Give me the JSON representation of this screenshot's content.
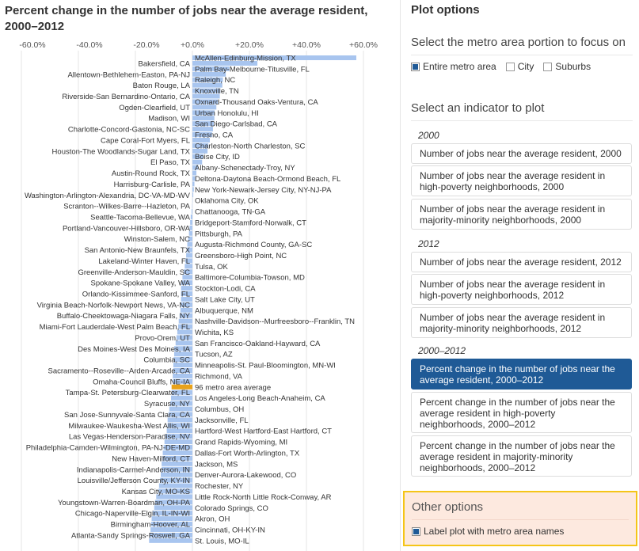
{
  "chart_data": {
    "type": "bar",
    "orientation": "horizontal",
    "title": "Percent change in the number of jobs near the average resident, 2000–2012",
    "xlim": [
      -60,
      60
    ],
    "xticks": [
      -60,
      -40,
      -20,
      0,
      20,
      40,
      60
    ],
    "xtick_labels": [
      "-60.0%",
      "-40.0%",
      "-20.0%",
      "+0.0%",
      "+20.0%",
      "+40.0%",
      "+60.0%"
    ],
    "grid": true,
    "bar_color": "#a8c5ef",
    "highlight_color": "#e8a21a",
    "highlight_category": "96 metro area average",
    "categories": [
      "McAllen-Edinburg-Mission, TX",
      "Bakersfield, CA",
      "Palm Bay-Melbourne-Titusville, FL",
      "Allentown-Bethlehem-Easton, PA-NJ",
      "Raleigh, NC",
      "Baton Rouge, LA",
      "Knoxville, TN",
      "Riverside-San Bernardino-Ontario, CA",
      "Oxnard-Thousand Oaks-Ventura, CA",
      "Ogden-Clearfield, UT",
      "Urban Honolulu, HI",
      "Madison, WI",
      "San Diego-Carlsbad, CA",
      "Charlotte-Concord-Gastonia, NC-SC",
      "Fresno, CA",
      "Cape Coral-Fort Myers, FL",
      "Charleston-North Charleston, SC",
      "Houston-The Woodlands-Sugar Land, TX",
      "Boise City, ID",
      "El Paso, TX",
      "Albany-Schenectady-Troy, NY",
      "Austin-Round Rock, TX",
      "Deltona-Daytona Beach-Ormond Beach, FL",
      "Harrisburg-Carlisle, PA",
      "New York-Newark-Jersey City, NY-NJ-PA",
      "Washington-Arlington-Alexandria, DC-VA-MD-WV",
      "Oklahoma City, OK",
      "Scranton--Wilkes-Barre--Hazleton, PA",
      "Chattanooga, TN-GA",
      "Seattle-Tacoma-Bellevue, WA",
      "Bridgeport-Stamford-Norwalk, CT",
      "Portland-Vancouver-Hillsboro, OR-WA",
      "Pittsburgh, PA",
      "Winston-Salem, NC",
      "Augusta-Richmond County, GA-SC",
      "San Antonio-New Braunfels, TX",
      "Greensboro-High Point, NC",
      "Lakeland-Winter Haven, FL",
      "Tulsa, OK",
      "Greenville-Anderson-Mauldin, SC",
      "Baltimore-Columbia-Towson, MD",
      "Spokane-Spokane Valley, WA",
      "Stockton-Lodi, CA",
      "Orlando-Kissimmee-Sanford, FL",
      "Salt Lake City, UT",
      "Virginia Beach-Norfolk-Newport News, VA-NC",
      "Albuquerque, NM",
      "Buffalo-Cheektowaga-Niagara Falls, NY",
      "Nashville-Davidson--Murfreesboro--Franklin, TN",
      "Miami-Fort Lauderdale-West Palm Beach, FL",
      "Wichita, KS",
      "Provo-Orem, UT",
      "San Francisco-Oakland-Hayward, CA",
      "Des Moines-West Des Moines, IA",
      "Tucson, AZ",
      "Columbia, SC",
      "Minneapolis-St. Paul-Bloomington, MN-WI",
      "Sacramento--Roseville--Arden-Arcade, CA",
      "Richmond, VA",
      "Omaha-Council Bluffs, NE-IA",
      "96 metro area average",
      "Tampa-St. Petersburg-Clearwater, FL",
      "Los Angeles-Long Beach-Anaheim, CA",
      "Syracuse, NY",
      "Columbus, OH",
      "San Jose-Sunnyvale-Santa Clara, CA",
      "Jacksonville, FL",
      "Milwaukee-Waukesha-West Allis, WI",
      "Hartford-West Hartford-East Hartford, CT",
      "Las Vegas-Henderson-Paradise, NV",
      "Grand Rapids-Wyoming, MI",
      "Philadelphia-Camden-Wilmington, PA-NJ-DE-MD",
      "Dallas-Fort Worth-Arlington, TX",
      "New Haven-Milford, CT",
      "Jackson, MS",
      "Indianapolis-Carmel-Anderson, IN",
      "Denver-Aurora-Lakewood, CO",
      "Louisville/Jefferson County, KY-IN",
      "Rochester, NY",
      "Kansas City, MO-KS",
      "Little Rock-North Little Rock-Conway, AR",
      "Youngstown-Warren-Boardman, OH-PA",
      "Colorado Springs, CO",
      "Chicago-Naperville-Elgin, IL-IN-WI",
      "Akron, OH",
      "Birmingham-Hoover, AL",
      "Cincinnati, OH-KY-IN",
      "Atlanta-Sandy Springs-Roswell, GA",
      "St. Louis, MO-IL"
    ],
    "values": [
      57.5,
      22.8,
      13.0,
      11.7,
      10.7,
      10.5,
      9.8,
      9.6,
      8.9,
      8.4,
      7.8,
      7.7,
      7.5,
      7.2,
      6.9,
      6.1,
      5.6,
      5.3,
      3.9,
      3.4,
      2.0,
      1.4,
      1.0,
      0.7,
      0.5,
      0.3,
      0.1,
      -0.1,
      -0.3,
      -0.6,
      -0.8,
      -1.0,
      -1.2,
      -1.5,
      -1.8,
      -2.0,
      -2.2,
      -2.5,
      -2.7,
      -3.1,
      -3.5,
      -3.9,
      -4.0,
      -4.0,
      -4.0,
      -4.1,
      -4.2,
      -4.5,
      -4.8,
      -5.0,
      -5.3,
      -5.6,
      -5.9,
      -6.4,
      -6.4,
      -6.6,
      -6.7,
      -6.7,
      -6.9,
      -6.9,
      -7.3,
      -7.3,
      -7.5,
      -7.8,
      -8.1,
      -8.4,
      -8.7,
      -8.7,
      -9.0,
      -9.4,
      -9.8,
      -10.1,
      -10.4,
      -10.4,
      -10.8,
      -10.8,
      -11.1,
      -11.4,
      -11.7,
      -12.0,
      -12.7,
      -13.1,
      -13.4,
      -14.0,
      -14.3,
      -14.5,
      -14.7,
      -15.0,
      -15.2
    ]
  },
  "sidebar": {
    "title": "Plot options",
    "portion": {
      "heading": "Select the metro area portion to focus on",
      "options": [
        {
          "label": "Entire metro area",
          "checked": true
        },
        {
          "label": "City",
          "checked": false
        },
        {
          "label": "Suburbs",
          "checked": false
        }
      ]
    },
    "indicator": {
      "heading": "Select an indicator to plot",
      "groups": [
        {
          "year": "2000",
          "items": [
            "Number of jobs near the average resident, 2000",
            "Number of jobs near the average resident in high-poverty neighborhoods, 2000",
            "Number of jobs near the average resident in majority-minority neighborhoods, 2000"
          ]
        },
        {
          "year": "2012",
          "items": [
            "Number of jobs near the average resident, 2012",
            "Number of jobs near the average resident in high-poverty neighborhoods, 2012",
            "Number of jobs near the average resident in majority-minority neighborhoods, 2012"
          ]
        },
        {
          "year": "2000–2012",
          "items": [
            "Percent change in the number of jobs near the average resident, 2000–2012",
            "Percent change in the number of jobs near the average resident in high-poverty neighborhoods, 2000–2012",
            "Percent change in the number of jobs near the average resident in majority-minority neighborhoods, 2000–2012"
          ]
        }
      ],
      "selected": "Percent change in the number of jobs near the average resident, 2000–2012",
      "selected_color": "#1f5a96"
    },
    "other": {
      "heading": "Other options",
      "label_option": "Label plot with metro area names",
      "label_checked": true,
      "highlight_border": "#f5c518"
    }
  }
}
